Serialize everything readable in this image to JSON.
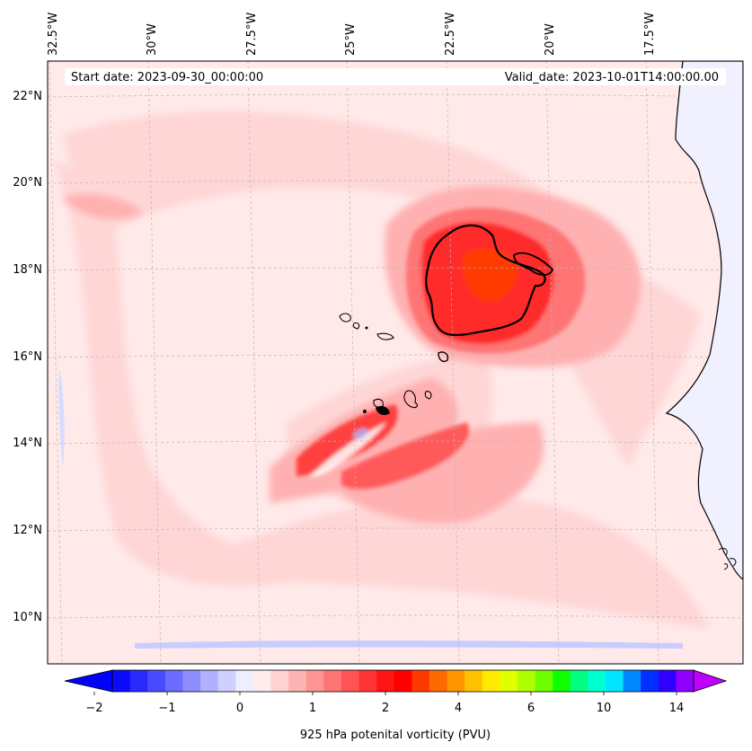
{
  "map": {
    "start_label": "Start date: 2023-09-30_00:00:00",
    "valid_label": "Valid_date: 2023-10-01T14:00:00.00",
    "lon_labels": [
      "32.5°W",
      "30°W",
      "27.5°W",
      "25°W",
      "22.5°W",
      "20°W",
      "17.5°W"
    ],
    "lat_labels": [
      "22°N",
      "20°N",
      "18°N",
      "16°N",
      "14°N",
      "12°N",
      "10°N"
    ],
    "extent": {
      "lon_min": -32.6,
      "lon_max": -15.5,
      "lat_min": 8.9,
      "lat_max": 22.8
    },
    "contour_level_pvu": 2
  },
  "colorbar": {
    "label": "925 hPa potenital vorticity (PVU)",
    "tick_labels": [
      "−2",
      "−1",
      "0",
      "1",
      "2",
      "4",
      "6",
      "10",
      "14"
    ],
    "levels": [
      -2,
      -1.5,
      -1,
      -0.5,
      0,
      0.5,
      1,
      1.5,
      2,
      3,
      4,
      5,
      6,
      8,
      10,
      12,
      14,
      16
    ],
    "colors": [
      "#0a0aff",
      "#2a2aff",
      "#4a4aff",
      "#6c6cff",
      "#8e8eff",
      "#b0b0ff",
      "#d0d0ff",
      "#eeeeff",
      "#ffeded",
      "#ffd2d2",
      "#ffb4b4",
      "#ff9494",
      "#ff7474",
      "#ff5454",
      "#ff3434",
      "#ff1414",
      "#ff0000",
      "#ff3a00",
      "#ff6a00",
      "#ff9600",
      "#ffc000",
      "#ffea00",
      "#e0ff00",
      "#b0ff00",
      "#70ff00",
      "#10ff00",
      "#00ff80",
      "#00ffd0",
      "#00e6ff",
      "#0088ff",
      "#0030ff",
      "#3000ff",
      "#9000ff"
    ],
    "under_color": "#0000ff",
    "over_color": "#c000ff"
  }
}
